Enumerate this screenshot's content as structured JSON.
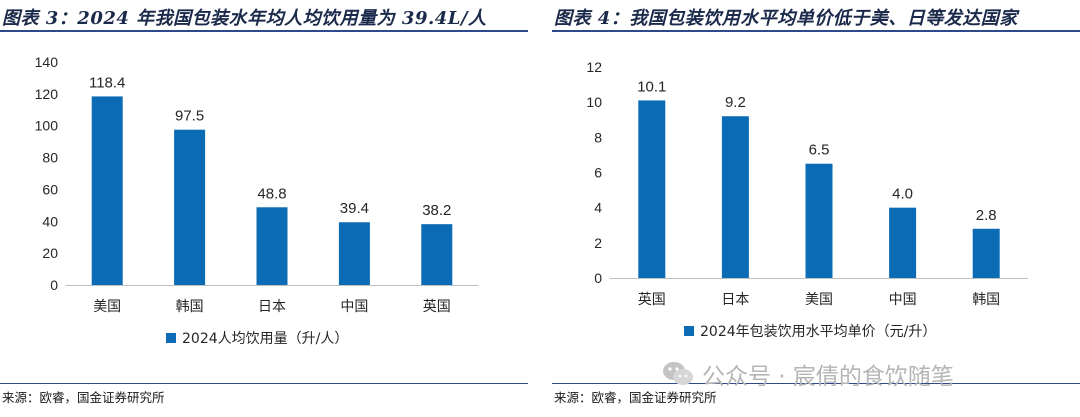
{
  "left": {
    "title": "图表 3：2024 年我国包装水年均人均饮用量为 39.4L/人",
    "source": "来源：欧睿，国金证券研究所"
  },
  "right": {
    "title": "图表 4：我国包装饮用水平均单价低于美、日等发达国家",
    "source": "来源：欧睿，国金证券研究所"
  },
  "watermark": "公众号 · 宸倩的食饮随笔",
  "colors": {
    "bar": "#0b6cb5",
    "rule": "#2d4b8a",
    "axis": "#bfbfbf"
  },
  "chart_data": [
    {
      "type": "bar",
      "categories": [
        "美国",
        "韩国",
        "日本",
        "中国",
        "英国"
      ],
      "series": [
        {
          "name": "2024人均饮用量（升/人）",
          "values": [
            118.4,
            97.5,
            48.8,
            39.4,
            38.2
          ]
        }
      ],
      "data_labels": [
        "118.4",
        "97.5",
        "48.8",
        "39.4",
        "38.2"
      ],
      "ylim": [
        0,
        140
      ],
      "yticks": [
        0,
        20,
        40,
        60,
        80,
        100,
        120,
        140
      ],
      "grid": false,
      "legend": "bottom-center"
    },
    {
      "type": "bar",
      "categories": [
        "英国",
        "日本",
        "美国",
        "中国",
        "韩国"
      ],
      "series": [
        {
          "name": "2024年包装饮用水平均单价（元/升）",
          "values": [
            10.1,
            9.2,
            6.5,
            4.0,
            2.8
          ]
        }
      ],
      "data_labels": [
        "10.1",
        "9.2",
        "6.5",
        "4.0",
        "2.8"
      ],
      "ylim": [
        0,
        12
      ],
      "yticks": [
        0,
        2,
        4,
        6,
        8,
        10,
        12
      ],
      "grid": false,
      "legend": "bottom-center"
    }
  ]
}
